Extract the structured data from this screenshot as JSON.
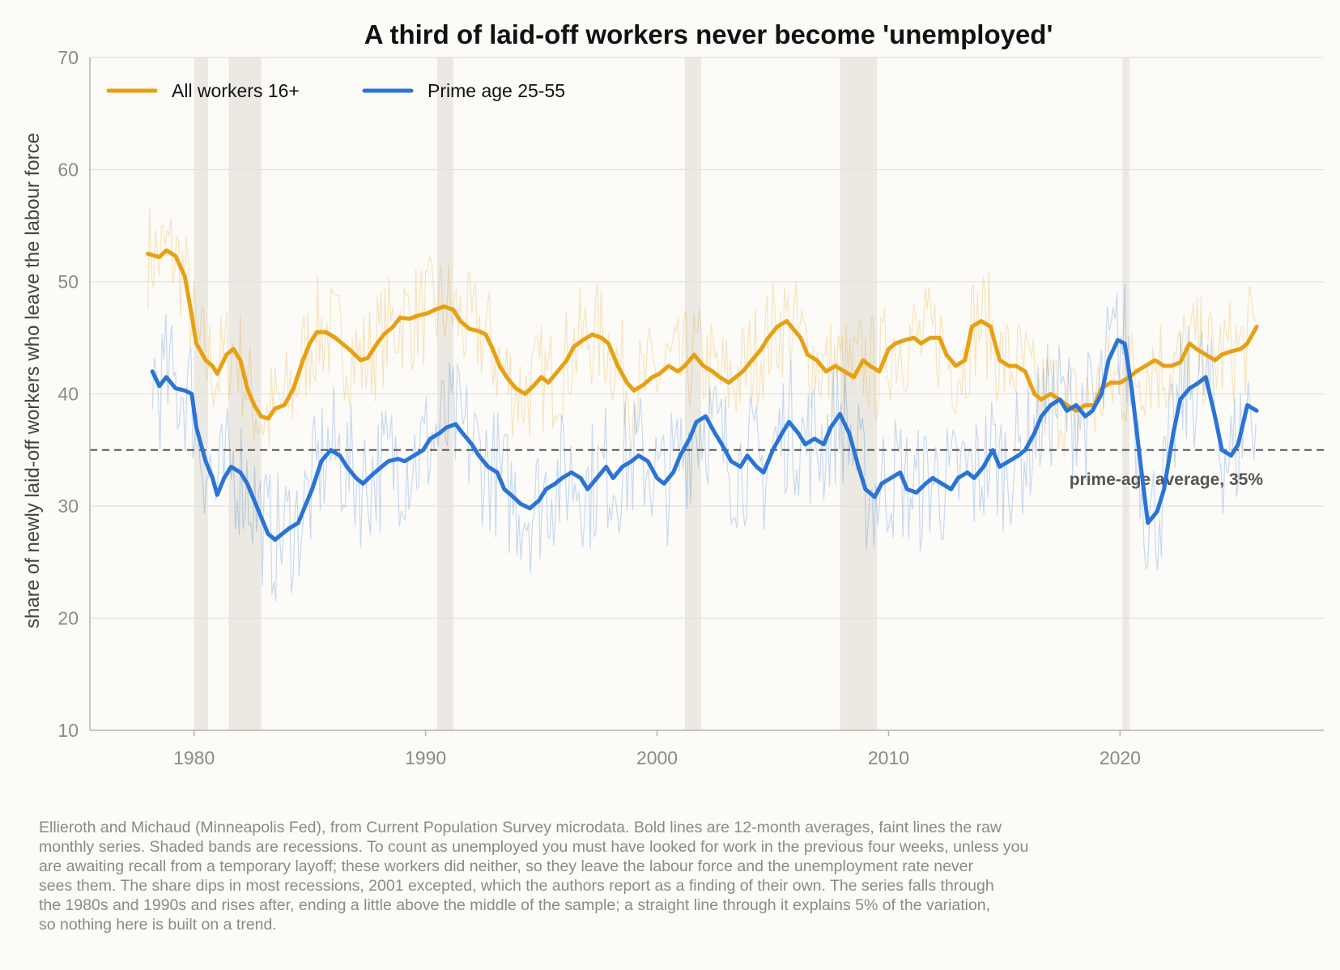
{
  "chart_data": {
    "type": "line",
    "title": "A third of laid-off workers never become 'unemployed'",
    "ylabel": "share of newly laid-off workers who leave the labour force",
    "xlabel": "",
    "xlim": [
      1975.5,
      2028.8
    ],
    "ylim": [
      10,
      70
    ],
    "x_ticks": [
      1980,
      1990,
      2000,
      2010,
      2020
    ],
    "y_ticks": [
      10,
      20,
      30,
      40,
      50,
      60,
      70
    ],
    "grid": "horizontal",
    "legend_position": "top-left",
    "recessions": [
      [
        1980.0,
        1980.6
      ],
      [
        1981.5,
        1982.9
      ],
      [
        1990.5,
        1991.2
      ],
      [
        2001.2,
        2001.9
      ],
      [
        2007.9,
        2009.5
      ],
      [
        2020.1,
        2020.4
      ]
    ],
    "reference_line": {
      "value": 35,
      "label": "prime-age average, 35%"
    },
    "series": [
      {
        "name": "All workers 16+",
        "color": "#e8a013",
        "raw_band": 5.0,
        "smoothed": [
          [
            1978.0,
            52.5
          ],
          [
            1978.5,
            52.2
          ],
          [
            1978.8,
            52.8
          ],
          [
            1979.2,
            52.3
          ],
          [
            1979.6,
            50.5
          ],
          [
            1979.9,
            47.0
          ],
          [
            1980.1,
            44.5
          ],
          [
            1980.5,
            43.0
          ],
          [
            1980.8,
            42.5
          ],
          [
            1981.0,
            41.8
          ],
          [
            1981.4,
            43.5
          ],
          [
            1981.7,
            44.0
          ],
          [
            1982.0,
            43.0
          ],
          [
            1982.3,
            40.5
          ],
          [
            1982.6,
            39.0
          ],
          [
            1982.9,
            38.0
          ],
          [
            1983.2,
            37.8
          ],
          [
            1983.5,
            38.7
          ],
          [
            1983.9,
            39.0
          ],
          [
            1984.3,
            40.5
          ],
          [
            1984.7,
            43.0
          ],
          [
            1985.0,
            44.5
          ],
          [
            1985.3,
            45.5
          ],
          [
            1985.7,
            45.5
          ],
          [
            1986.1,
            45.0
          ],
          [
            1986.4,
            44.5
          ],
          [
            1986.8,
            43.8
          ],
          [
            1987.2,
            43.0
          ],
          [
            1987.5,
            43.2
          ],
          [
            1987.9,
            44.5
          ],
          [
            1988.2,
            45.3
          ],
          [
            1988.6,
            46.0
          ],
          [
            1988.9,
            46.8
          ],
          [
            1989.3,
            46.7
          ],
          [
            1989.7,
            47.0
          ],
          [
            1990.1,
            47.2
          ],
          [
            1990.4,
            47.5
          ],
          [
            1990.8,
            47.8
          ],
          [
            1991.2,
            47.5
          ],
          [
            1991.5,
            46.5
          ],
          [
            1991.9,
            45.8
          ],
          [
            1992.3,
            45.6
          ],
          [
            1992.6,
            45.3
          ],
          [
            1992.9,
            44.0
          ],
          [
            1993.2,
            42.5
          ],
          [
            1993.5,
            41.5
          ],
          [
            1993.9,
            40.5
          ],
          [
            1994.3,
            40.0
          ],
          [
            1994.7,
            40.8
          ],
          [
            1995.0,
            41.5
          ],
          [
            1995.3,
            41.0
          ],
          [
            1995.7,
            42.0
          ],
          [
            1996.1,
            43.0
          ],
          [
            1996.4,
            44.2
          ],
          [
            1996.8,
            44.8
          ],
          [
            1997.2,
            45.3
          ],
          [
            1997.6,
            45.0
          ],
          [
            1997.9,
            44.5
          ],
          [
            1998.3,
            42.5
          ],
          [
            1998.7,
            41.0
          ],
          [
            1999.0,
            40.3
          ],
          [
            1999.4,
            40.8
          ],
          [
            1999.8,
            41.5
          ],
          [
            2000.1,
            41.8
          ],
          [
            2000.5,
            42.5
          ],
          [
            2000.9,
            42.0
          ],
          [
            2001.2,
            42.5
          ],
          [
            2001.6,
            43.5
          ],
          [
            2002.0,
            42.5
          ],
          [
            2002.4,
            42.0
          ],
          [
            2002.7,
            41.5
          ],
          [
            2003.1,
            41.0
          ],
          [
            2003.4,
            41.5
          ],
          [
            2003.7,
            42.0
          ],
          [
            2004.1,
            43.0
          ],
          [
            2004.5,
            44.0
          ],
          [
            2004.8,
            45.0
          ],
          [
            2005.2,
            46.0
          ],
          [
            2005.6,
            46.5
          ],
          [
            2005.8,
            46.0
          ],
          [
            2006.2,
            45.0
          ],
          [
            2006.5,
            43.5
          ],
          [
            2006.9,
            43.0
          ],
          [
            2007.3,
            42.0
          ],
          [
            2007.7,
            42.5
          ],
          [
            2008.1,
            42.0
          ],
          [
            2008.5,
            41.5
          ],
          [
            2008.9,
            43.0
          ],
          [
            2009.2,
            42.5
          ],
          [
            2009.6,
            42.0
          ],
          [
            2010.0,
            44.0
          ],
          [
            2010.3,
            44.5
          ],
          [
            2010.7,
            44.8
          ],
          [
            2011.1,
            45.0
          ],
          [
            2011.4,
            44.5
          ],
          [
            2011.8,
            45.0
          ],
          [
            2012.2,
            45.0
          ],
          [
            2012.5,
            43.5
          ],
          [
            2012.9,
            42.5
          ],
          [
            2013.3,
            43.0
          ],
          [
            2013.6,
            46.0
          ],
          [
            2014.0,
            46.5
          ],
          [
            2014.4,
            46.0
          ],
          [
            2014.8,
            43.0
          ],
          [
            2015.2,
            42.5
          ],
          [
            2015.5,
            42.5
          ],
          [
            2015.9,
            42.0
          ],
          [
            2016.3,
            40.0
          ],
          [
            2016.6,
            39.5
          ],
          [
            2017.0,
            40.0
          ],
          [
            2017.4,
            39.5
          ],
          [
            2017.7,
            39.0
          ],
          [
            2018.1,
            38.5
          ],
          [
            2018.5,
            39.0
          ],
          [
            2018.9,
            39.0
          ],
          [
            2019.2,
            40.5
          ],
          [
            2019.6,
            41.0
          ],
          [
            2020.0,
            41.0
          ],
          [
            2020.4,
            41.5
          ],
          [
            2020.7,
            42.0
          ],
          [
            2021.1,
            42.5
          ],
          [
            2021.5,
            43.0
          ],
          [
            2021.9,
            42.5
          ],
          [
            2022.2,
            42.5
          ],
          [
            2022.6,
            42.8
          ],
          [
            2023.0,
            44.5
          ],
          [
            2023.3,
            44.0
          ],
          [
            2023.7,
            43.5
          ],
          [
            2024.1,
            43.0
          ],
          [
            2024.4,
            43.5
          ],
          [
            2024.8,
            43.8
          ],
          [
            2025.2,
            44.0
          ],
          [
            2025.5,
            44.5
          ],
          [
            2025.9,
            46.0
          ]
        ]
      },
      {
        "name": "Prime age 25-55",
        "color": "#2a74d6",
        "raw_band": 6.0,
        "smoothed": [
          [
            1978.2,
            42.0
          ],
          [
            1978.5,
            40.7
          ],
          [
            1978.8,
            41.5
          ],
          [
            1979.2,
            40.5
          ],
          [
            1979.6,
            40.3
          ],
          [
            1979.9,
            40.0
          ],
          [
            1980.1,
            37.0
          ],
          [
            1980.5,
            34.0
          ],
          [
            1980.8,
            32.5
          ],
          [
            1981.0,
            31.0
          ],
          [
            1981.3,
            32.5
          ],
          [
            1981.6,
            33.5
          ],
          [
            1982.0,
            33.0
          ],
          [
            1982.3,
            32.0
          ],
          [
            1982.6,
            30.5
          ],
          [
            1982.9,
            29.0
          ],
          [
            1983.2,
            27.5
          ],
          [
            1983.5,
            27.0
          ],
          [
            1983.8,
            27.5
          ],
          [
            1984.1,
            28.0
          ],
          [
            1984.5,
            28.5
          ],
          [
            1984.8,
            30.0
          ],
          [
            1985.1,
            31.5
          ],
          [
            1985.5,
            34.0
          ],
          [
            1985.9,
            35.0
          ],
          [
            1986.3,
            34.5
          ],
          [
            1986.6,
            33.5
          ],
          [
            1987.0,
            32.5
          ],
          [
            1987.3,
            32.0
          ],
          [
            1987.7,
            32.8
          ],
          [
            1988.1,
            33.5
          ],
          [
            1988.4,
            34.0
          ],
          [
            1988.8,
            34.2
          ],
          [
            1989.1,
            34.0
          ],
          [
            1989.5,
            34.5
          ],
          [
            1989.9,
            35.0
          ],
          [
            1990.2,
            36.0
          ],
          [
            1990.6,
            36.5
          ],
          [
            1990.9,
            37.0
          ],
          [
            1991.3,
            37.3
          ],
          [
            1991.6,
            36.5
          ],
          [
            1992.0,
            35.5
          ],
          [
            1992.3,
            34.5
          ],
          [
            1992.7,
            33.5
          ],
          [
            1993.1,
            33.0
          ],
          [
            1993.4,
            31.5
          ],
          [
            1993.8,
            30.8
          ],
          [
            1994.1,
            30.2
          ],
          [
            1994.5,
            29.8
          ],
          [
            1994.9,
            30.5
          ],
          [
            1995.2,
            31.5
          ],
          [
            1995.6,
            32.0
          ],
          [
            1995.9,
            32.5
          ],
          [
            1996.3,
            33.0
          ],
          [
            1996.7,
            32.5
          ],
          [
            1997.0,
            31.5
          ],
          [
            1997.4,
            32.5
          ],
          [
            1997.8,
            33.5
          ],
          [
            1998.1,
            32.5
          ],
          [
            1998.5,
            33.5
          ],
          [
            1998.9,
            34.0
          ],
          [
            1999.2,
            34.5
          ],
          [
            1999.6,
            34.0
          ],
          [
            2000.0,
            32.5
          ],
          [
            2000.3,
            32.0
          ],
          [
            2000.7,
            33.0
          ],
          [
            2001.0,
            34.5
          ],
          [
            2001.4,
            36.0
          ],
          [
            2001.7,
            37.5
          ],
          [
            2002.1,
            38.0
          ],
          [
            2002.5,
            36.5
          ],
          [
            2002.8,
            35.5
          ],
          [
            2003.2,
            34.0
          ],
          [
            2003.6,
            33.5
          ],
          [
            2003.9,
            34.5
          ],
          [
            2004.3,
            33.5
          ],
          [
            2004.6,
            33.0
          ],
          [
            2005.0,
            35.0
          ],
          [
            2005.4,
            36.5
          ],
          [
            2005.7,
            37.5
          ],
          [
            2006.1,
            36.5
          ],
          [
            2006.4,
            35.5
          ],
          [
            2006.8,
            36.0
          ],
          [
            2007.2,
            35.5
          ],
          [
            2007.5,
            37.0
          ],
          [
            2007.9,
            38.2
          ],
          [
            2008.3,
            36.5
          ],
          [
            2008.7,
            33.5
          ],
          [
            2009.0,
            31.5
          ],
          [
            2009.4,
            30.8
          ],
          [
            2009.7,
            32.0
          ],
          [
            2010.1,
            32.5
          ],
          [
            2010.5,
            33.0
          ],
          [
            2010.8,
            31.5
          ],
          [
            2011.2,
            31.2
          ],
          [
            2011.6,
            32.0
          ],
          [
            2011.9,
            32.5
          ],
          [
            2012.3,
            32.0
          ],
          [
            2012.7,
            31.5
          ],
          [
            2013.0,
            32.5
          ],
          [
            2013.4,
            33.0
          ],
          [
            2013.7,
            32.5
          ],
          [
            2014.1,
            33.5
          ],
          [
            2014.5,
            35.0
          ],
          [
            2014.8,
            33.5
          ],
          [
            2015.2,
            34.0
          ],
          [
            2015.6,
            34.5
          ],
          [
            2015.9,
            35.0
          ],
          [
            2016.3,
            36.5
          ],
          [
            2016.6,
            38.0
          ],
          [
            2017.0,
            39.0
          ],
          [
            2017.4,
            39.5
          ],
          [
            2017.7,
            38.5
          ],
          [
            2018.1,
            39.0
          ],
          [
            2018.5,
            38.0
          ],
          [
            2018.8,
            38.5
          ],
          [
            2019.2,
            40.0
          ],
          [
            2019.5,
            43.0
          ],
          [
            2019.9,
            44.8
          ],
          [
            2020.2,
            44.5
          ],
          [
            2020.5,
            40.5
          ],
          [
            2020.9,
            33.5
          ],
          [
            2021.2,
            28.5
          ],
          [
            2021.6,
            29.5
          ],
          [
            2021.9,
            31.5
          ],
          [
            2022.3,
            36.5
          ],
          [
            2022.6,
            39.5
          ],
          [
            2023.0,
            40.5
          ],
          [
            2023.4,
            41.0
          ],
          [
            2023.7,
            41.5
          ],
          [
            2024.1,
            38.0
          ],
          [
            2024.4,
            35.0
          ],
          [
            2024.8,
            34.5
          ],
          [
            2025.1,
            35.5
          ],
          [
            2025.5,
            39.0
          ],
          [
            2025.9,
            38.5
          ]
        ]
      }
    ]
  },
  "caption_lines": [
    "Ellieroth and Michaud (Minneapolis Fed), from Current Population Survey microdata. Bold lines are 12-month averages, faint lines the raw",
    "monthly series. Shaded bands are recessions. To count as unemployed you must have looked for work in the previous four weeks, unless you",
    "are awaiting recall from a temporary layoff; these workers did neither, so they leave the labour force and the unemployment rate never",
    "sees them. The share dips in most recessions, 2001 excepted, which the authors report as a finding of their own. The series falls through",
    "the 1980s and 1990s and rises after, ending a little above the middle of the sample; a straight line through it explains 5% of the variation,",
    "so nothing here is built on a trend."
  ],
  "colors": {
    "background": "#fcfbf8",
    "grid": "#e3e1dc",
    "axis": "#b5b3ae",
    "tick_label": "#8a8a8a",
    "recession": "#ebe9e2",
    "reference": "#555555"
  }
}
